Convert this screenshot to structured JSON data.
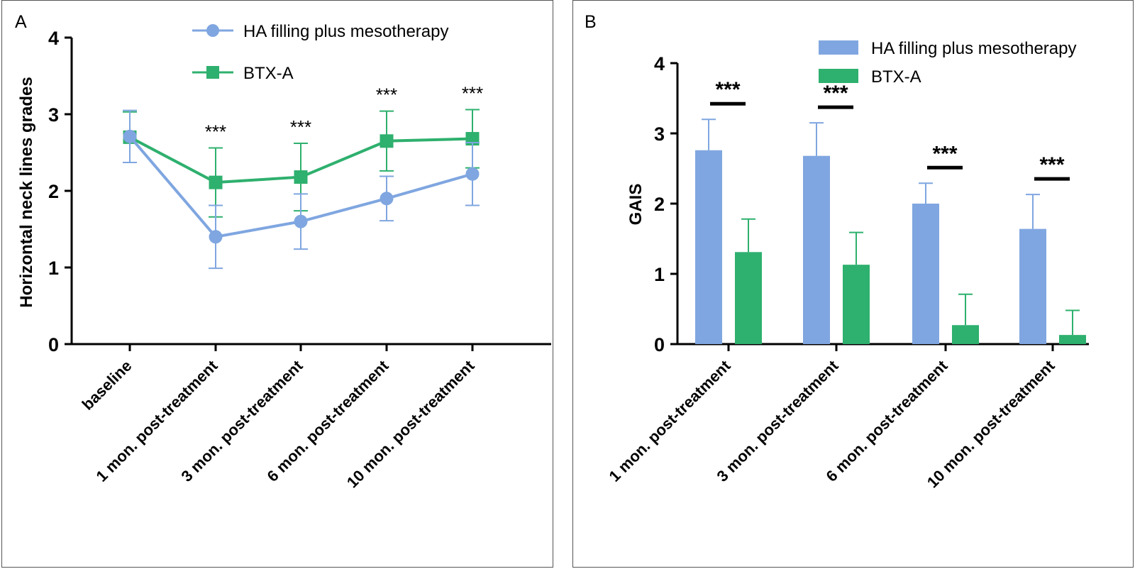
{
  "chart_data": [
    {
      "panel": "A",
      "type": "line",
      "ylabel": "Horizontal neck lines grades",
      "ylim": [
        0,
        4
      ],
      "yticks": [
        "0",
        "1",
        "2",
        "3",
        "4"
      ],
      "categories": [
        "baseline",
        "1 mon. post-treatment",
        "3 mon. post-treatment",
        "6 mon. post-treatment",
        "10 mon. post-treatment"
      ],
      "series": [
        {
          "name": "HA filling plus mesotherapy",
          "color": "#7fa6e0",
          "marker": "circle",
          "values": [
            2.71,
            1.4,
            1.6,
            1.9,
            2.22
          ],
          "sd": [
            0.34,
            0.41,
            0.36,
            0.29,
            0.41
          ]
        },
        {
          "name": "BTX-A",
          "color": "#2eb06e",
          "marker": "square",
          "values": [
            2.7,
            2.11,
            2.18,
            2.65,
            2.68
          ],
          "sd": [
            0.33,
            0.45,
            0.44,
            0.39,
            0.38
          ]
        }
      ],
      "significance": [
        "",
        "***",
        "***",
        "***",
        "***"
      ],
      "legend": "top"
    },
    {
      "panel": "B",
      "type": "bar",
      "ylabel": "GAIS",
      "ylim": [
        0,
        4
      ],
      "yticks": [
        "0",
        "1",
        "2",
        "3",
        "4"
      ],
      "categories": [
        "1 mon. post-treatment",
        "3 mon. post-treatment",
        "6 mon. post-treatment",
        "10 mon. post-treatment"
      ],
      "series": [
        {
          "name": "HA filling plus mesotherapy",
          "color": "#7fa6e0",
          "values": [
            2.76,
            2.68,
            2.0,
            1.64
          ],
          "sd": [
            0.44,
            0.47,
            0.29,
            0.49
          ]
        },
        {
          "name": "BTX-A",
          "color": "#2eb06e",
          "values": [
            1.31,
            1.13,
            0.27,
            0.13
          ],
          "sd": [
            0.47,
            0.46,
            0.44,
            0.35
          ]
        }
      ],
      "significance": [
        "***",
        "***",
        "***",
        "***"
      ],
      "legend": "top-right"
    }
  ],
  "panels": {
    "a_label": "A",
    "b_label": "B"
  }
}
